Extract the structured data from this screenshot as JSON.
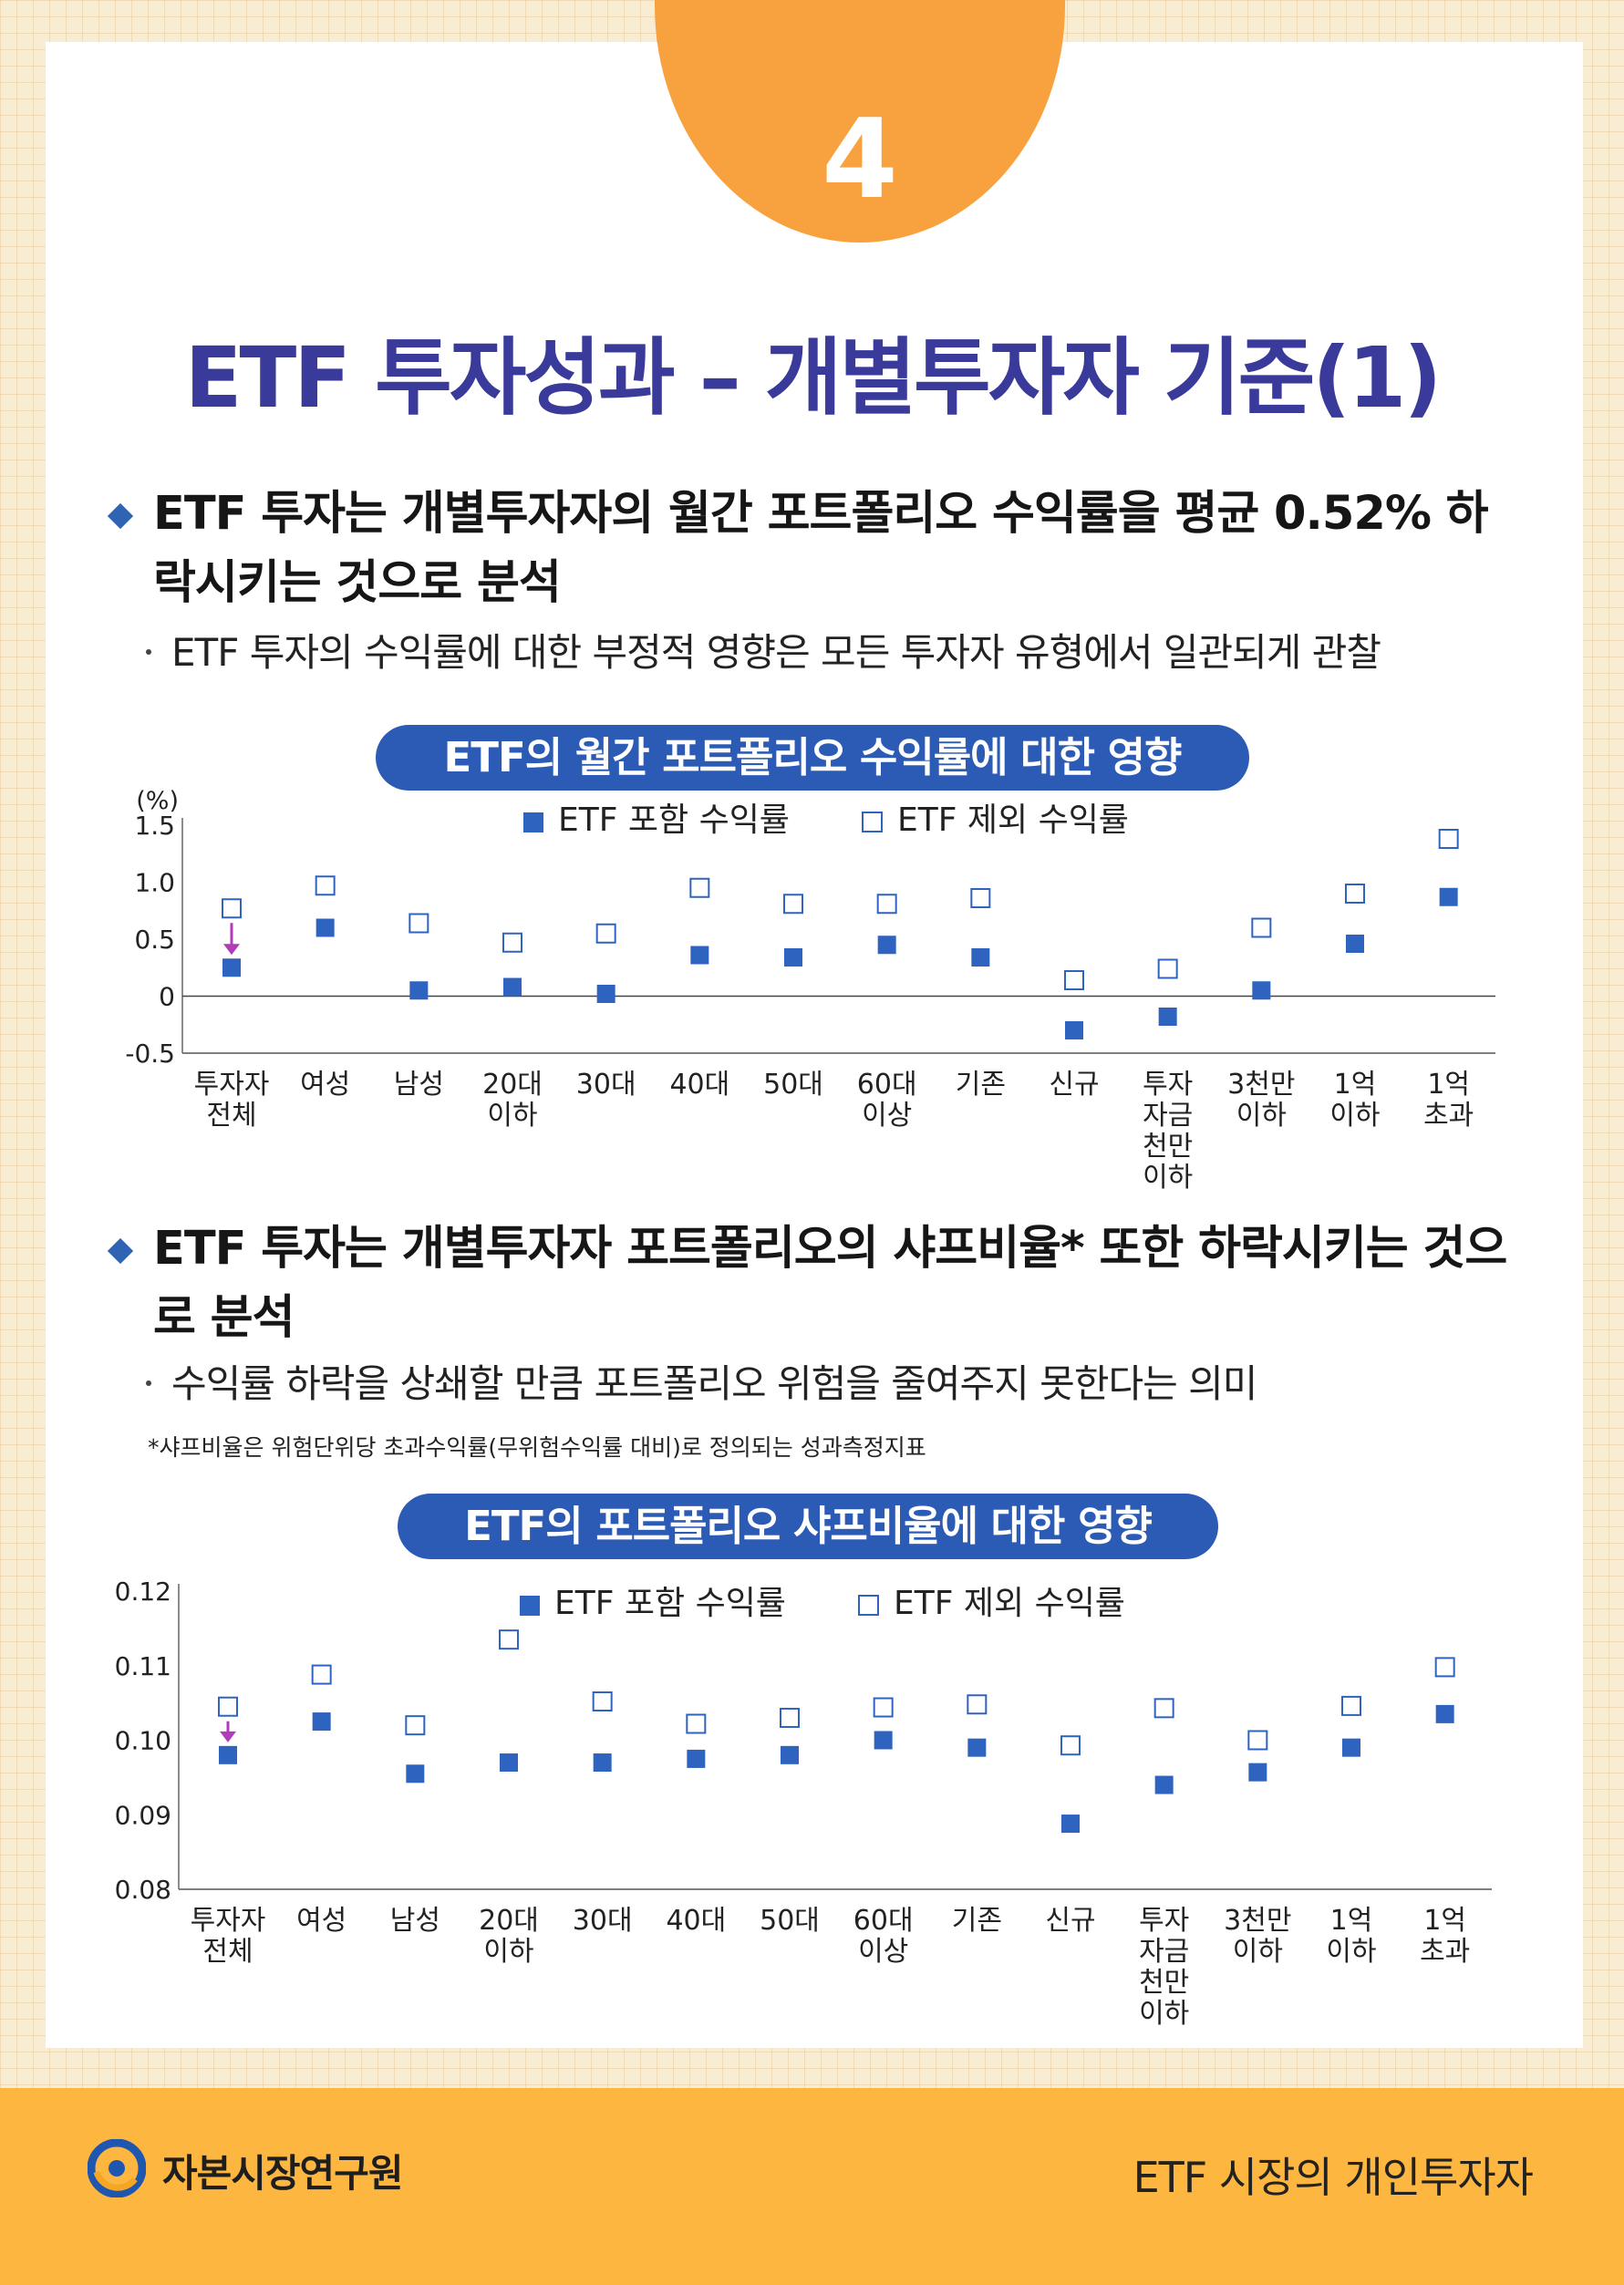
{
  "page_number": "4",
  "title": "ETF 투자성과 – 개별투자자 기준(1)",
  "bullets": [
    {
      "text": "ETF 투자는 개별투자자의 월간 포트폴리오 수익률을 평균 0.52% 하락시키는 것으로 분석",
      "sub": "ETF 투자의 수익률에 대한 부정적 영향은 모든 투자자 유형에서 일관되게 관찰"
    },
    {
      "text": "ETF 투자는 개별투자자 포트폴리오의 샤프비율* 또한 하락시키는 것으로 분석",
      "sub": "수익률 하락을 상쇄할 만큼 포트폴리오 위험을 줄여주지 못한다는 의미",
      "footnote": "*샤프비율은 위험단위당 초과수익률(무위험수익률 대비)로 정의되는 성과측정지표"
    }
  ],
  "colors": {
    "accent_blue": "#2c5bb5",
    "filled_marker": "#2f63c0",
    "open_marker": "#2f63c0",
    "arrow": "#b03cb8",
    "badge": "#f8a23f",
    "footer": "#fdb740",
    "title": "#3a3a9a"
  },
  "chart_data": [
    {
      "type": "scatter",
      "title": "ETF의 월간 포트폴리오 수익률에 대한 영향",
      "unit_label": "(%)",
      "categories": [
        [
          "투자자",
          "전체"
        ],
        [
          "여성"
        ],
        [
          "남성"
        ],
        [
          "20대",
          "이하"
        ],
        [
          "30대"
        ],
        [
          "40대"
        ],
        [
          "50대"
        ],
        [
          "60대",
          "이상"
        ],
        [
          "기존"
        ],
        [
          "신규"
        ],
        [
          "투자",
          "자금",
          "천만",
          "이하"
        ],
        [
          "3천만",
          "이하"
        ],
        [
          "1억",
          "이하"
        ],
        [
          "1억",
          "초과"
        ]
      ],
      "series": [
        {
          "name": "ETF 포함 수익률",
          "marker": "filled-square",
          "values": [
            0.25,
            0.6,
            0.05,
            0.08,
            0.02,
            0.36,
            0.34,
            0.45,
            0.34,
            -0.3,
            -0.18,
            0.05,
            0.46,
            0.87
          ]
        },
        {
          "name": "ETF 제외 수익률",
          "marker": "open-square",
          "values": [
            0.77,
            0.97,
            0.64,
            0.47,
            0.55,
            0.95,
            0.81,
            0.81,
            0.86,
            0.14,
            0.24,
            0.6,
            0.9,
            1.38
          ]
        }
      ],
      "yticks": [
        "1.5",
        "1.0",
        "0.5",
        "0",
        "-0.5"
      ],
      "ytick_values": [
        1.5,
        1.0,
        0.5,
        0.0,
        -0.5
      ],
      "ylim": [
        -0.5,
        1.5
      ],
      "legend_position": "top-center",
      "annotation": "arrow pointing down from open to filled marker of first category"
    },
    {
      "type": "scatter",
      "title": "ETF의 포트폴리오 샤프비율에 대한 영향",
      "categories": [
        [
          "투자자",
          "전체"
        ],
        [
          "여성"
        ],
        [
          "남성"
        ],
        [
          "20대",
          "이하"
        ],
        [
          "30대"
        ],
        [
          "40대"
        ],
        [
          "50대"
        ],
        [
          "60대",
          "이상"
        ],
        [
          "기존"
        ],
        [
          "신규"
        ],
        [
          "투자",
          "자금",
          "천만",
          "이하"
        ],
        [
          "3천만",
          "이하"
        ],
        [
          "1억",
          "이하"
        ],
        [
          "1억",
          "초과"
        ]
      ],
      "series": [
        {
          "name": "ETF 포함 수익률",
          "marker": "filled-square",
          "values": [
            0.098,
            0.1025,
            0.0955,
            0.097,
            0.097,
            0.0975,
            0.098,
            0.1,
            0.099,
            0.0888,
            0.094,
            0.0957,
            0.099,
            0.1035
          ]
        },
        {
          "name": "ETF 제외 수익률",
          "marker": "open-square",
          "values": [
            0.1045,
            0.1088,
            0.102,
            0.1135,
            0.1052,
            0.1022,
            0.103,
            0.1044,
            0.1048,
            0.0993,
            0.1043,
            0.1,
            0.1046,
            0.1098
          ]
        }
      ],
      "yticks": [
        "0.12",
        "0.11",
        "0.10",
        "0.09",
        "0.08"
      ],
      "ytick_values": [
        0.12,
        0.11,
        0.1,
        0.09,
        0.08
      ],
      "ylim": [
        0.08,
        0.12
      ],
      "legend_position": "top-center",
      "annotation": "arrow pointing down from open to filled marker of first category"
    }
  ],
  "footer": {
    "organization": "자본시장연구원",
    "report_title": "ETF 시장의 개인투자자"
  }
}
